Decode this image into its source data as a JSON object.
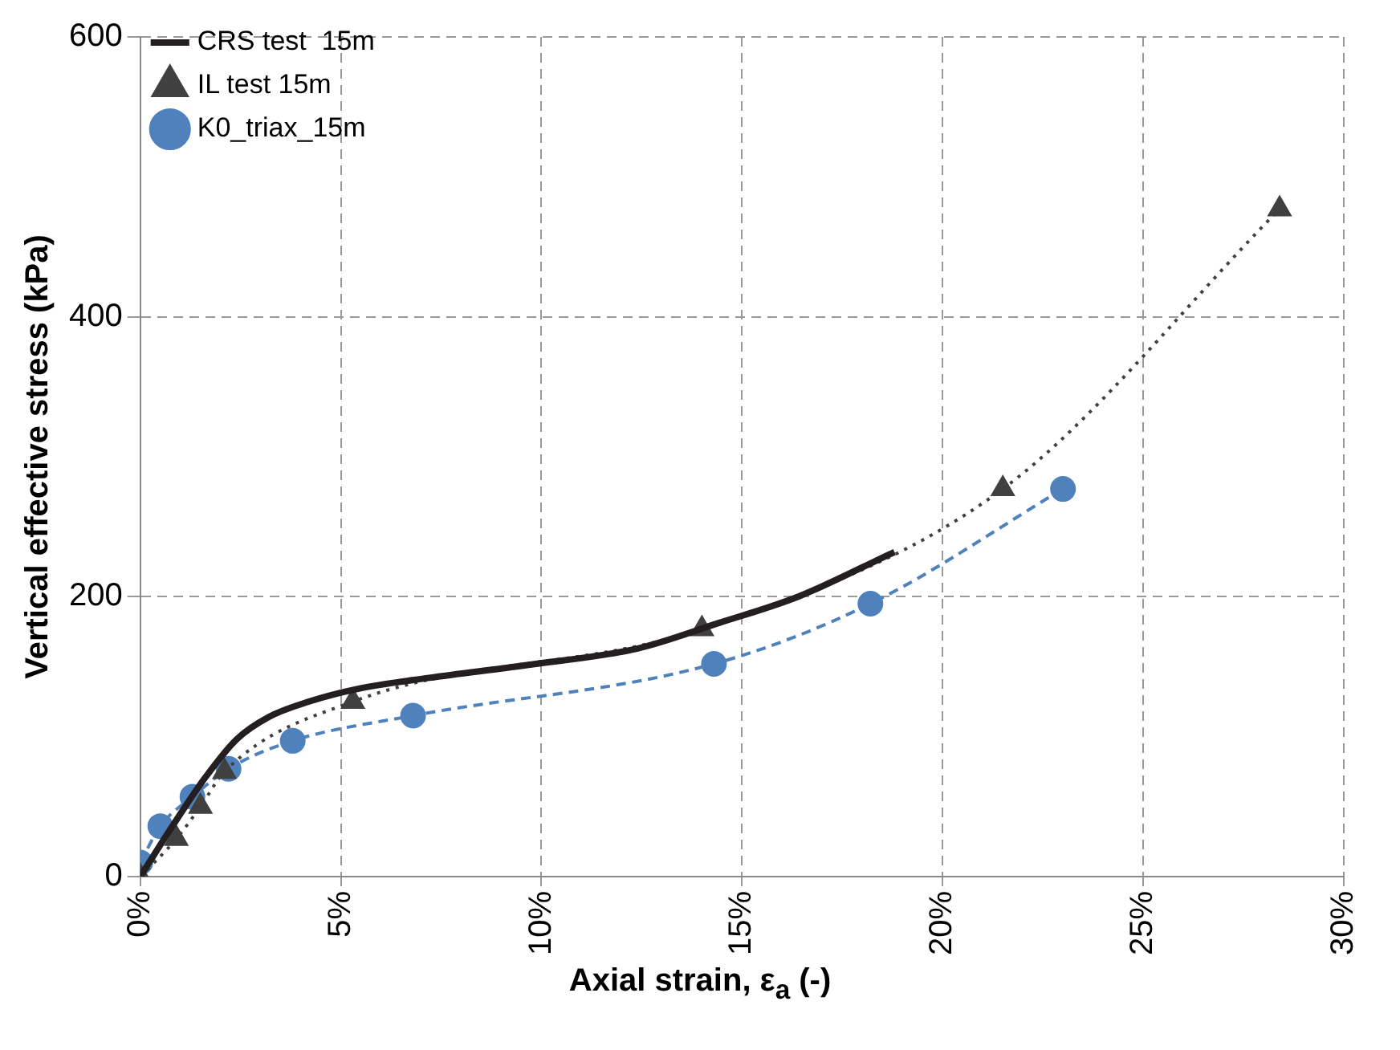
{
  "chart_data": {
    "type": "line",
    "xlabel": "Axial strain, ε$_{a}$  (-)",
    "ylabel": "Vertical effective stress (kPa)",
    "xlim": [
      0,
      30
    ],
    "xticks": [
      {
        "value": 0,
        "label": "0%"
      },
      {
        "value": 5,
        "label": "5%"
      },
      {
        "value": 10,
        "label": "10%"
      },
      {
        "value": 15,
        "label": "15%"
      },
      {
        "value": 20,
        "label": "20%"
      },
      {
        "value": 25,
        "label": "25%"
      },
      {
        "value": 30,
        "label": "30%"
      }
    ],
    "ylim": [
      0,
      600
    ],
    "yticks": [
      0,
      200,
      400,
      600
    ],
    "grid": true,
    "legend": "top left",
    "series": [
      {
        "name": "K0_triax_15m",
        "color": "#4f81bd",
        "marker": "circle",
        "line_style": "dashed",
        "x": [
          0,
          0.5,
          1.3,
          2.2,
          3.8,
          6.8,
          14.3,
          18.2,
          23.0
        ],
        "values": [
          10,
          36,
          57,
          77,
          97,
          115,
          152,
          195,
          277
        ]
      },
      {
        "name": "IL test 15m",
        "color": "#404040",
        "marker": "triangle",
        "line_style": "dotted",
        "x": [
          0,
          0.9,
          1.5,
          2.1,
          5.3,
          14.0,
          21.5,
          28.4
        ],
        "values": [
          0,
          27,
          50,
          75,
          125,
          177,
          277,
          477
        ]
      },
      {
        "name": "CRS test  15m",
        "color": "#231f20",
        "marker": "none",
        "line_style": "solid",
        "x": [
          0,
          0.8,
          1.6,
          2.4,
          3.2,
          4.2,
          5.4,
          7.2,
          9.6,
          12.4,
          14.4,
          16.4,
          18.8
        ],
        "values": [
          0,
          36,
          70,
          98,
          114,
          125,
          134,
          142,
          151,
          163,
          181,
          200,
          232
        ]
      }
    ]
  }
}
